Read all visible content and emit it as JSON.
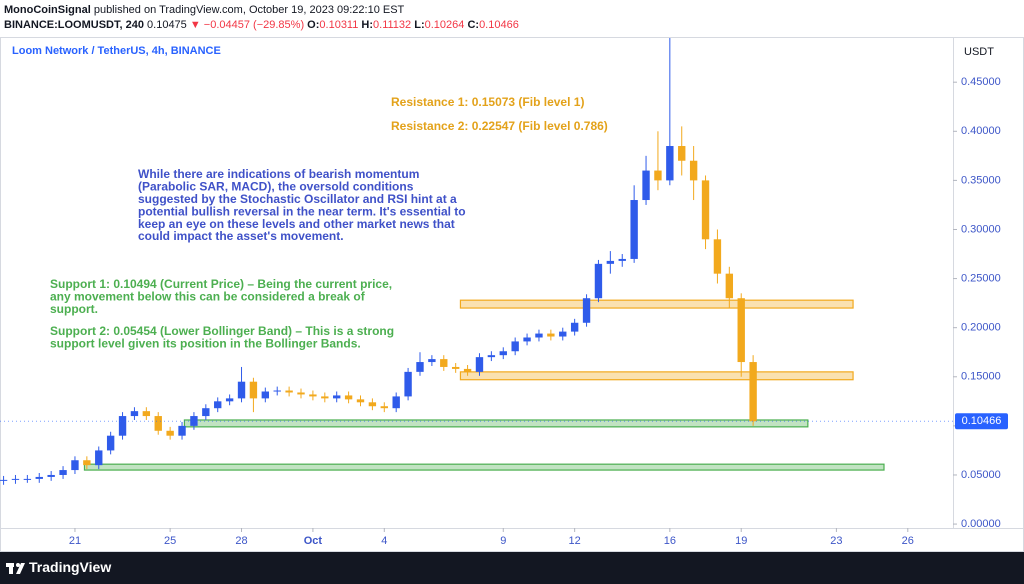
{
  "header": {
    "author": "MonoCoinSignal",
    "published": "published on TradingView.com, October 19, 2023 09:22:10 EST",
    "symbol": "BINANCE:LOOMUSDT, 240",
    "price": "0.10475",
    "change": "▼ −0.04457 (−29.85%)",
    "o_label": "O:",
    "o": "0.10311",
    "h_label": "H:",
    "h": "0.11132",
    "l_label": "L:",
    "l": "0.10264",
    "c_label": "C:",
    "c": "0.10466"
  },
  "footer": {
    "brand": "TradingView"
  },
  "chart_data": {
    "type": "candlestick",
    "title": "Loom Network / TetherUS, 4h, BINANCE",
    "y_axis_label": "USDT",
    "up_color": "#2f5bea",
    "down_color": "#f2a91d",
    "xlim": [
      -3.15,
      36.9
    ],
    "xticks": [
      {
        "value": 0,
        "label": "21"
      },
      {
        "value": 4,
        "label": "25"
      },
      {
        "value": 7,
        "label": "28"
      },
      {
        "value": 10,
        "label": "Oct"
      },
      {
        "value": 13,
        "label": "4"
      },
      {
        "value": 18,
        "label": "9"
      },
      {
        "value": 21,
        "label": "12"
      },
      {
        "value": 25,
        "label": "16"
      },
      {
        "value": 28,
        "label": "19"
      },
      {
        "value": 32,
        "label": "23"
      },
      {
        "value": 35,
        "label": "26"
      }
    ],
    "ylim": [
      -0.004,
      0.495
    ],
    "yticks": [
      {
        "value": 0,
        "label": "0.00000"
      },
      {
        "value": 0.05,
        "label": "0.05000"
      },
      {
        "value": 0.1,
        "label": "0.10000"
      },
      {
        "value": 0.15,
        "label": "0.15000"
      },
      {
        "value": 0.2,
        "label": "0.20000"
      },
      {
        "value": 0.25,
        "label": "0.25000"
      },
      {
        "value": 0.3,
        "label": "0.30000"
      },
      {
        "value": 0.35,
        "label": "0.35000"
      },
      {
        "value": 0.4,
        "label": "0.40000"
      },
      {
        "value": 0.45,
        "label": "0.45000"
      }
    ],
    "last_price": 0.10466,
    "x": [
      -3,
      -2.5,
      -2,
      -1.5,
      -1,
      -0.5,
      0,
      0.5,
      1,
      1.5,
      2,
      2.5,
      3,
      3.5,
      4,
      4.5,
      5,
      5.5,
      6,
      6.5,
      7,
      7.5,
      8,
      8.5,
      9,
      9.5,
      10,
      10.5,
      11,
      11.5,
      12,
      12.5,
      13,
      13.5,
      14,
      14.5,
      15,
      15.5,
      16,
      16.5,
      17,
      17.5,
      18,
      18.5,
      19,
      19.5,
      20,
      20.5,
      21,
      21.5,
      22,
      22.5,
      23,
      23.5,
      24,
      24.5,
      25,
      25.5,
      26,
      26.5,
      27,
      27.5,
      28,
      28.5
    ],
    "open": [
      0.044,
      0.045,
      0.046,
      0.046,
      0.048,
      0.05,
      0.055,
      0.065,
      0.06,
      0.075,
      0.09,
      0.11,
      0.115,
      0.11,
      0.095,
      0.09,
      0.1,
      0.11,
      0.118,
      0.125,
      0.128,
      0.145,
      0.128,
      0.135,
      0.136,
      0.134,
      0.132,
      0.13,
      0.128,
      0.131,
      0.127,
      0.124,
      0.12,
      0.118,
      0.13,
      0.155,
      0.165,
      0.168,
      0.16,
      0.158,
      0.155,
      0.17,
      0.172,
      0.176,
      0.186,
      0.19,
      0.194,
      0.191,
      0.196,
      0.205,
      0.23,
      0.265,
      0.268,
      0.27,
      0.33,
      0.36,
      0.35,
      0.385,
      0.37,
      0.35,
      0.29,
      0.255,
      0.23,
      0.165
    ],
    "high": [
      0.049,
      0.05,
      0.05,
      0.052,
      0.054,
      0.059,
      0.069,
      0.069,
      0.079,
      0.094,
      0.114,
      0.119,
      0.119,
      0.114,
      0.099,
      0.104,
      0.114,
      0.122,
      0.129,
      0.132,
      0.16,
      0.149,
      0.139,
      0.14,
      0.14,
      0.138,
      0.136,
      0.134,
      0.135,
      0.135,
      0.131,
      0.128,
      0.124,
      0.134,
      0.159,
      0.175,
      0.172,
      0.172,
      0.164,
      0.162,
      0.174,
      0.176,
      0.18,
      0.19,
      0.194,
      0.198,
      0.198,
      0.2,
      0.209,
      0.234,
      0.269,
      0.278,
      0.275,
      0.345,
      0.375,
      0.4,
      0.495,
      0.405,
      0.385,
      0.355,
      0.3,
      0.262,
      0.235,
      0.172
    ],
    "low": [
      0.04,
      0.041,
      0.042,
      0.042,
      0.044,
      0.046,
      0.051,
      0.056,
      0.056,
      0.071,
      0.086,
      0.106,
      0.106,
      0.091,
      0.086,
      0.086,
      0.096,
      0.106,
      0.114,
      0.121,
      0.124,
      0.114,
      0.124,
      0.131,
      0.13,
      0.128,
      0.126,
      0.124,
      0.124,
      0.123,
      0.12,
      0.116,
      0.114,
      0.114,
      0.126,
      0.151,
      0.161,
      0.156,
      0.154,
      0.151,
      0.151,
      0.166,
      0.168,
      0.172,
      0.182,
      0.186,
      0.187,
      0.187,
      0.192,
      0.201,
      0.226,
      0.255,
      0.262,
      0.266,
      0.325,
      0.34,
      0.345,
      0.355,
      0.33,
      0.28,
      0.245,
      0.22,
      0.15,
      0.1
    ],
    "close": [
      0.045,
      0.046,
      0.046,
      0.048,
      0.05,
      0.055,
      0.065,
      0.06,
      0.075,
      0.09,
      0.11,
      0.115,
      0.11,
      0.095,
      0.09,
      0.1,
      0.11,
      0.118,
      0.125,
      0.128,
      0.145,
      0.128,
      0.135,
      0.136,
      0.134,
      0.132,
      0.13,
      0.128,
      0.131,
      0.127,
      0.124,
      0.12,
      0.118,
      0.13,
      0.155,
      0.165,
      0.168,
      0.16,
      0.158,
      0.155,
      0.17,
      0.172,
      0.176,
      0.186,
      0.19,
      0.194,
      0.191,
      0.196,
      0.205,
      0.23,
      0.265,
      0.268,
      0.27,
      0.33,
      0.36,
      0.35,
      0.385,
      0.37,
      0.35,
      0.29,
      0.255,
      0.23,
      0.165,
      0.10466
    ],
    "zones": [
      {
        "x": [
          16.2,
          32.7
        ],
        "y": [
          0.22,
          0.228
        ],
        "color": "#f2a91d"
      },
      {
        "x": [
          16.2,
          32.7
        ],
        "y": [
          0.147,
          0.155
        ],
        "color": "#f2a91d"
      },
      {
        "x": [
          4.6,
          30.8
        ],
        "y": [
          0.099,
          0.106
        ],
        "color": "#4caf50"
      },
      {
        "x": [
          0.4,
          34
        ],
        "y": [
          0.055,
          0.061
        ],
        "color": "#4caf50"
      }
    ],
    "annotations": [
      {
        "color": "#e3a21a",
        "lines": [
          "Resistance 1: 0.15073 (Fib level 1)"
        ]
      },
      {
        "color": "#e3a21a",
        "lines": [
          "Resistance 2: 0.22547 (Fib level 0.786)"
        ]
      },
      {
        "color": "#3f51c8",
        "lines": [
          "While there are indications of bearish momentum",
          "(Parabolic SAR, MACD), the oversold conditions",
          "suggested by the Stochastic Oscillator and RSI hint at a",
          "potential bullish reversal in the near term. It's essential to",
          "keep an eye on these levels and other market news that",
          "could impact the asset's movement."
        ]
      },
      {
        "color": "#4caf50",
        "lines": [
          "Support 1: 0.10494 (Current Price) – Being the current price,",
          "any movement below this can be considered a break of",
          "support."
        ]
      },
      {
        "color": "#4caf50",
        "lines": [
          "Support 2: 0.05454 (Lower Bollinger Band) – This is a strong",
          "support level given its position in the Bollinger Bands."
        ]
      }
    ]
  }
}
